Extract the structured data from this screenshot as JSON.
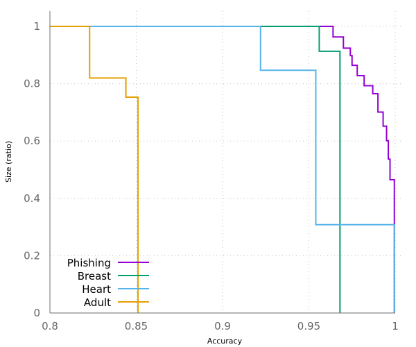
{
  "chart_data": {
    "type": "line",
    "step": true,
    "title": "",
    "xlabel": "Accuracy",
    "ylabel": "Size (ratio)",
    "xlim": [
      0.8,
      1.0
    ],
    "ylim": [
      0,
      1.0
    ],
    "xticks": [
      0.8,
      0.85,
      0.9,
      0.95,
      1.0
    ],
    "xtick_labels": [
      "0.8",
      "0.85",
      "0.9",
      "0.95",
      "1"
    ],
    "yticks": [
      0,
      0.2,
      0.4,
      0.6,
      0.8,
      1.0
    ],
    "ytick_labels": [
      "0",
      "0.2",
      "0.4",
      "0.6",
      "0.8",
      "1"
    ],
    "grid": true,
    "legend_position": "bottom-left",
    "series": [
      {
        "name": "Phishing",
        "color": "#9400d3",
        "points": [
          [
            0.8,
            1.0
          ],
          [
            0.964,
            1.0
          ],
          [
            0.964,
            0.963
          ],
          [
            0.97,
            0.963
          ],
          [
            0.97,
            0.924
          ],
          [
            0.974,
            0.924
          ],
          [
            0.974,
            0.898
          ],
          [
            0.975,
            0.898
          ],
          [
            0.975,
            0.864
          ],
          [
            0.978,
            0.864
          ],
          [
            0.978,
            0.828
          ],
          [
            0.982,
            0.828
          ],
          [
            0.982,
            0.793
          ],
          [
            0.987,
            0.793
          ],
          [
            0.987,
            0.765
          ],
          [
            0.99,
            0.765
          ],
          [
            0.99,
            0.701
          ],
          [
            0.993,
            0.701
          ],
          [
            0.993,
            0.652
          ],
          [
            0.995,
            0.652
          ],
          [
            0.995,
            0.601
          ],
          [
            0.996,
            0.601
          ],
          [
            0.996,
            0.537
          ],
          [
            0.997,
            0.537
          ],
          [
            0.997,
            0.465
          ],
          [
            0.9995,
            0.465
          ],
          [
            0.9995,
            0
          ]
        ]
      },
      {
        "name": "Breast",
        "color": "#009e73",
        "points": [
          [
            0.8,
            1.0
          ],
          [
            0.956,
            1.0
          ],
          [
            0.956,
            0.913
          ],
          [
            0.968,
            0.913
          ],
          [
            0.968,
            0
          ]
        ]
      },
      {
        "name": "Heart",
        "color": "#56b4e9",
        "points": [
          [
            0.8,
            1.0
          ],
          [
            0.922,
            1.0
          ],
          [
            0.922,
            0.847
          ],
          [
            0.954,
            0.847
          ],
          [
            0.954,
            0.308
          ],
          [
            0.9995,
            0.308
          ],
          [
            0.9995,
            0
          ]
        ]
      },
      {
        "name": "Adult",
        "color": "#e69f00",
        "points": [
          [
            0.8,
            1.0
          ],
          [
            0.823,
            1.0
          ],
          [
            0.823,
            0.82
          ],
          [
            0.844,
            0.82
          ],
          [
            0.844,
            0.753
          ],
          [
            0.851,
            0.753
          ],
          [
            0.851,
            0
          ]
        ]
      }
    ]
  }
}
